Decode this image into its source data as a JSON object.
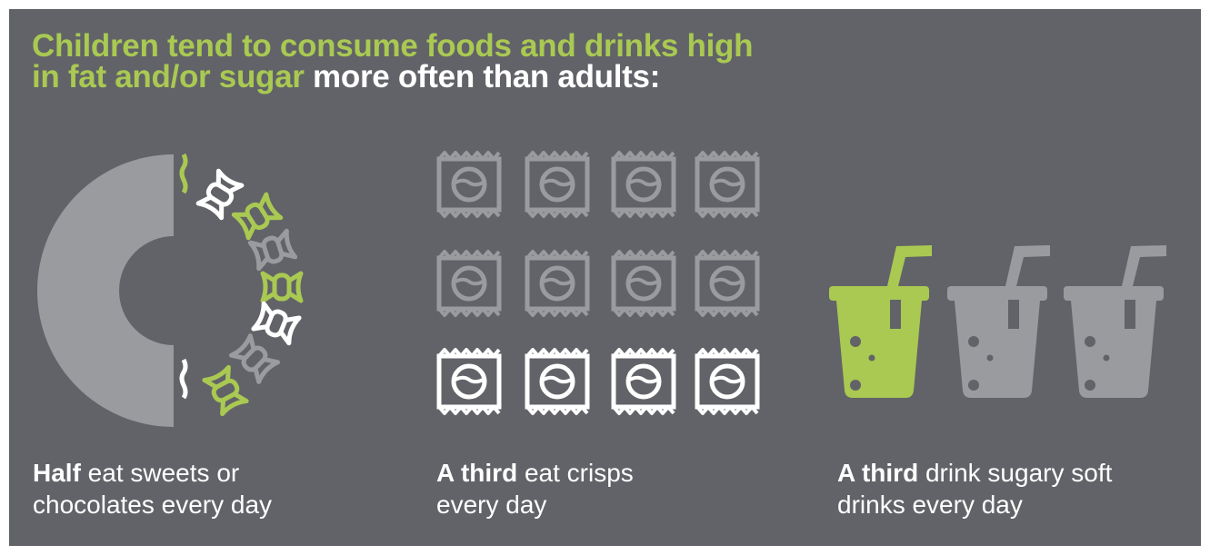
{
  "title": {
    "highlight": "Children tend to consume foods and drinks high in fat and/or sugar",
    "rest": " more often than adults:"
  },
  "stats": [
    {
      "bold": "Half",
      "text": " eat sweets or chocolates every day",
      "fraction": 0.5,
      "icon": "sweet-icon"
    },
    {
      "bold": "A third",
      "text": " eat crisps every day",
      "fraction": 0.333,
      "icon": "crisp-packet-icon"
    },
    {
      "bold": "A third",
      "text": " drink sugary soft drinks every day",
      "fraction": 0.333,
      "icon": "glass-with-straw-icon"
    }
  ],
  "colors": {
    "background": "#626368",
    "highlight": "#a9c952",
    "muted": "#9a9b9f",
    "text": "#ffffff"
  }
}
